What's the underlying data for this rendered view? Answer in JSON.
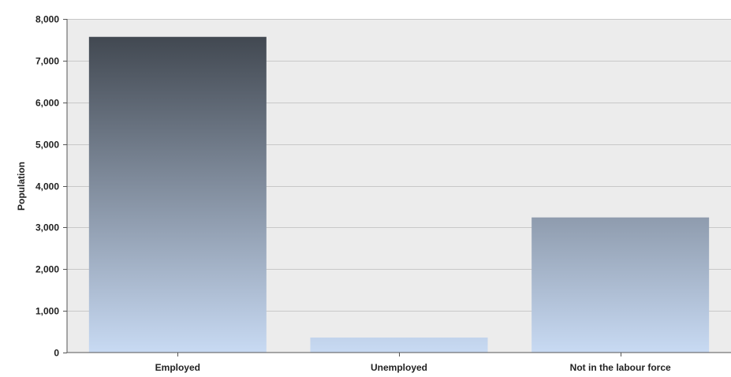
{
  "chart_data": {
    "type": "bar",
    "categories": [
      "Employed",
      "Unemployed",
      "Not in the labour force"
    ],
    "values": [
      7570,
      360,
      3240
    ],
    "ylabel": "Population",
    "xlabel": "",
    "ylim": [
      0,
      8000
    ],
    "yticks": [
      0,
      1000,
      2000,
      3000,
      4000,
      5000,
      6000,
      7000,
      8000
    ],
    "ytick_labels": [
      "0",
      "1,000",
      "2,000",
      "3,000",
      "4,000",
      "5,000",
      "6,000",
      "7,000",
      "8,000"
    ],
    "grid": true,
    "legend": "none",
    "colors": {
      "plot_background": "#ececec",
      "gridline": "#c8c8c8",
      "bar_gradient_top": "#3a4048",
      "bar_gradient_bottom": "#c8daf3"
    }
  }
}
